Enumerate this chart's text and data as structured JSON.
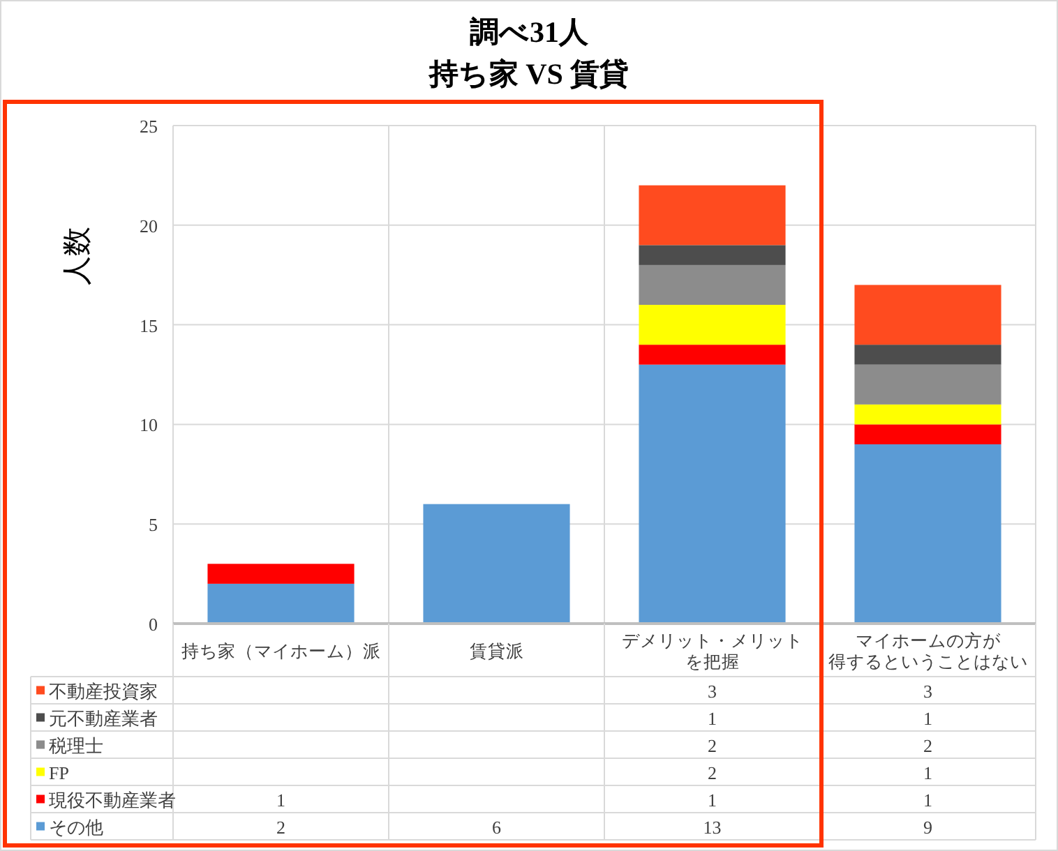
{
  "chart_data": {
    "type": "bar",
    "title": "調べ31人",
    "subtitle": "持ち家 VS 賃貸",
    "ylabel": "人数",
    "categories": [
      "持ち家（マイホーム）派",
      "賃貸派",
      "デメリット・メリットを把握",
      "マイホームの方が得するということはない"
    ],
    "series": [
      {
        "name": "その他",
        "color": "#5b9bd5",
        "values": [
          2,
          6,
          13,
          9
        ]
      },
      {
        "name": "現役不動産業者",
        "color": "#ff0000",
        "values": [
          1,
          null,
          1,
          1
        ]
      },
      {
        "name": "FP",
        "color": "#ffff00",
        "values": [
          null,
          null,
          2,
          1
        ]
      },
      {
        "name": "税理士",
        "color": "#8c8c8c",
        "values": [
          null,
          null,
          2,
          2
        ]
      },
      {
        "name": "元不動産業者",
        "color": "#4d4d4d",
        "values": [
          null,
          null,
          1,
          1
        ]
      },
      {
        "name": "不動産投資家",
        "color": "#ff4b1f",
        "values": [
          null,
          null,
          3,
          3
        ]
      }
    ],
    "stacked": true,
    "ylim": [
      0,
      25
    ],
    "yticks": [
      0,
      5,
      10,
      15,
      20,
      25
    ],
    "grid": true,
    "legend": "bottom",
    "data_labels": true
  }
}
